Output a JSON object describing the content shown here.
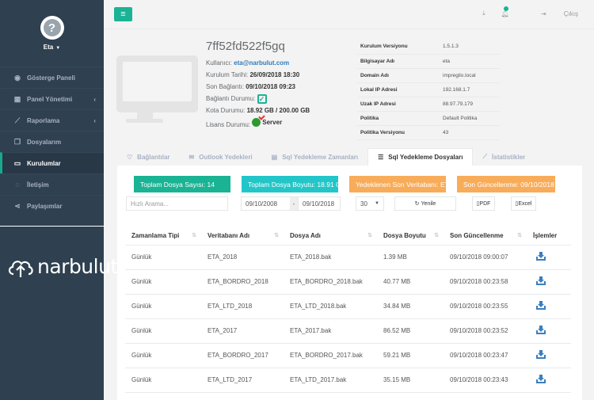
{
  "sidebar": {
    "user_name": "Eta",
    "items": [
      {
        "label": "Gösterge Paneli",
        "icon": "palette-icon"
      },
      {
        "label": "Panel Yönetimi",
        "icon": "grid-icon"
      },
      {
        "label": "Raporlama",
        "icon": "chart-icon"
      },
      {
        "label": "Dosyalarım",
        "icon": "files-icon"
      },
      {
        "label": "Kurulumlar",
        "icon": "desktop-icon"
      },
      {
        "label": "İletişim",
        "icon": "chat-icon"
      },
      {
        "label": "Paylaşımlar",
        "icon": "share-icon"
      }
    ],
    "logo_text": "narbulut"
  },
  "topbar": {
    "logout_label": "Çıkış"
  },
  "device": {
    "id": "7ff52fd522f5gq",
    "user_label": "Kullanıcı:",
    "user_email": "eta@narbulut.com",
    "install_date_label": "Kurulum Tarihi:",
    "install_date": "26/09/2018 18:30",
    "last_conn_label": "Son Bağlantı:",
    "last_conn": "09/10/2018 09:23",
    "conn_status_label": "Bağlantı Durumu:",
    "quota_label": "Kota Durumu:",
    "quota": "18.92 GB / 200.00 GB",
    "license_label": "Lisans Durumu:",
    "license_value": "Server"
  },
  "specs": [
    {
      "key": "Kurulum Versiyonu",
      "value": "1.5.1.3"
    },
    {
      "key": "Bilgisayar Adı",
      "value": "eta"
    },
    {
      "key": "Domain Adı",
      "value": "impregilo.local"
    },
    {
      "key": "Lokal IP Adresi",
      "value": "192.168.1.7"
    },
    {
      "key": "Uzak IP Adresi",
      "value": "88.97.79.179"
    },
    {
      "key": "Politika",
      "value": "Default Politika"
    },
    {
      "key": "Politika Versiyonu",
      "value": "43"
    }
  ],
  "tabs": [
    {
      "label": "Bağlantılar"
    },
    {
      "label": "Outlook Yedekleri"
    },
    {
      "label": "Sql Yedekleme Zamanları"
    },
    {
      "label": "Sql Yedekleme Dosyaları"
    },
    {
      "label": "İstatistikler"
    }
  ],
  "summary": {
    "total_files": "Toplam Dosya Sayısı: 14",
    "total_size": "Toplam Dosya Boyutu: 18.91 GB",
    "last_db": "Yedeklenen Son Veritabanı: ETA_LTD_2017",
    "last_update": "Son Güncellenme: 09/10/2018"
  },
  "filters": {
    "search_placeholder": "Hızlı Arama...",
    "date_from": "09/10/2008",
    "date_sep": "-",
    "date_to": "09/10/2018",
    "page_size": "30",
    "refresh_label": "Yenile",
    "pdf_label": "PDF",
    "excel_label": "Excel"
  },
  "table": {
    "columns": [
      "Zamanlama Tipi",
      "Veritabanı Adı",
      "Dosya Adı",
      "Dosya Boyutu",
      "Son Güncellenme",
      "İşlemler"
    ],
    "rows": [
      [
        "Günlük",
        "ETA_2018",
        "ETA_2018.bak",
        "1.39 MB",
        "09/10/2018 09:00:07"
      ],
      [
        "Günlük",
        "ETA_BORDRO_2018",
        "ETA_BORDRO_2018.bak",
        "40.77 MB",
        "09/10/2018 00:23:58"
      ],
      [
        "Günlük",
        "ETA_LTD_2018",
        "ETA_LTD_2018.bak",
        "34.84 MB",
        "09/10/2018 00:23:55"
      ],
      [
        "Günlük",
        "ETA_2017",
        "ETA_2017.bak",
        "86.52 MB",
        "09/10/2018 00:23:52"
      ],
      [
        "Günlük",
        "ETA_BORDRO_2017",
        "ETA_BORDRO_2017.bak",
        "59.21 MB",
        "09/10/2018 00:23:47"
      ],
      [
        "Günlük",
        "ETA_LTD_2017",
        "ETA_LTD_2017.bak",
        "35.15 MB",
        "09/10/2018 00:23:43"
      ]
    ]
  }
}
